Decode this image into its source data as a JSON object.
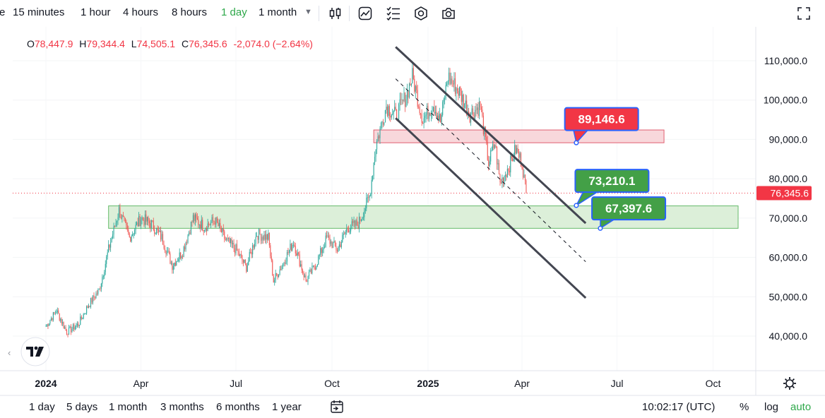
{
  "toolbar": {
    "partial_left": "e",
    "intervals": [
      "15 minutes",
      "1 hour",
      "4 hours",
      "8 hours",
      "1 day",
      "1 month"
    ],
    "active_interval": "1 day",
    "icons": [
      "bar-style-icon",
      "indicators-icon",
      "alert-list-icon",
      "settings-icon",
      "camera-icon",
      "fullscreen-icon"
    ]
  },
  "ohlc": {
    "o_label": "O",
    "o_value": "78,447.9",
    "h_label": "H",
    "h_value": "79,344.4",
    "l_label": "L",
    "l_value": "74,505.1",
    "c_label": "C",
    "c_value": "76,345.6",
    "change": "-2,074.0 (−2.64%)"
  },
  "chart_data": {
    "type": "candlestick",
    "y_axis": {
      "min": 33000,
      "max": 117000,
      "ticks": [
        "110,000.0",
        "100,000.0",
        "90,000.0",
        "80,000.0",
        "70,000.0",
        "60,000.0",
        "50,000.0",
        "40,000.0"
      ]
    },
    "x_axis": {
      "ticks": [
        "2024",
        "Apr",
        "Jul",
        "Oct",
        "2025",
        "Apr",
        "Jul",
        "Oct"
      ],
      "bold": [
        "2024",
        "2025"
      ]
    },
    "last_price": "76,345.6",
    "last_price_value": 76345.6,
    "zones": [
      {
        "kind": "resistance",
        "low": 89146.6,
        "high": 92400,
        "start": "2024-11-10",
        "end": "2025-08-15",
        "color": "#f8d7db"
      },
      {
        "kind": "support",
        "low": 67397.6,
        "high": 73100,
        "start": "2024-03-01",
        "end": "2025-10-25",
        "color": "#dcefd9"
      }
    ],
    "callouts": [
      {
        "text": "89,146.6",
        "color": "#f23645",
        "value": 89146.6,
        "date": "2025-05-23"
      },
      {
        "text": "73,210.1",
        "color": "#43a047",
        "value": 73210.1,
        "date": "2025-05-23"
      },
      {
        "text": "67,397.6",
        "color": "#43a047",
        "value": 67397.6,
        "date": "2025-06-15"
      }
    ],
    "channel": {
      "upper": [
        [
          "2024-12-01",
          113500
        ],
        [
          "2025-06-01",
          68700
        ]
      ],
      "middle": [
        [
          "2024-12-01",
          105400
        ],
        [
          "2025-06-01",
          58900
        ]
      ],
      "lower": [
        [
          "2024-12-01",
          95400
        ],
        [
          "2025-06-01",
          49700
        ]
      ]
    },
    "closes": [
      [
        "2024-01-01",
        42500
      ],
      [
        "2024-01-11",
        46500
      ],
      [
        "2024-01-21",
        41000
      ],
      [
        "2024-02-01",
        43000
      ],
      [
        "2024-02-11",
        48000
      ],
      [
        "2024-02-21",
        51700
      ],
      [
        "2024-03-01",
        62000
      ],
      [
        "2024-03-11",
        72000
      ],
      [
        "2024-03-21",
        65000
      ],
      [
        "2024-04-01",
        70000
      ],
      [
        "2024-04-11",
        68500
      ],
      [
        "2024-04-21",
        65000
      ],
      [
        "2024-05-01",
        58000
      ],
      [
        "2024-05-11",
        61500
      ],
      [
        "2024-05-21",
        70000
      ],
      [
        "2024-06-01",
        67800
      ],
      [
        "2024-06-11",
        69500
      ],
      [
        "2024-06-21",
        64500
      ],
      [
        "2024-07-01",
        62000
      ],
      [
        "2024-07-11",
        57500
      ],
      [
        "2024-07-21",
        66000
      ],
      [
        "2024-08-01",
        65000
      ],
      [
        "2024-08-06",
        54000
      ],
      [
        "2024-08-15",
        58500
      ],
      [
        "2024-08-25",
        64000
      ],
      [
        "2024-09-06",
        54000
      ],
      [
        "2024-09-16",
        58500
      ],
      [
        "2024-09-26",
        65000
      ],
      [
        "2024-10-06",
        62000
      ],
      [
        "2024-10-16",
        67500
      ],
      [
        "2024-10-26",
        68500
      ],
      [
        "2024-11-06",
        75500
      ],
      [
        "2024-11-12",
        88500
      ],
      [
        "2024-11-22",
        98500
      ],
      [
        "2024-12-01",
        96000
      ],
      [
        "2024-12-11",
        101000
      ],
      [
        "2024-12-17",
        106000
      ],
      [
        "2024-12-27",
        95000
      ],
      [
        "2025-01-06",
        99000
      ],
      [
        "2025-01-13",
        94500
      ],
      [
        "2025-01-20",
        106000
      ],
      [
        "2025-01-31",
        102000
      ],
      [
        "2025-02-10",
        96500
      ],
      [
        "2025-02-20",
        98500
      ],
      [
        "2025-02-28",
        84000
      ],
      [
        "2025-03-06",
        89000
      ],
      [
        "2025-03-11",
        78800
      ],
      [
        "2025-03-21",
        84000
      ],
      [
        "2025-03-26",
        87500
      ],
      [
        "2025-04-01",
        84000
      ],
      [
        "2025-04-05",
        76345.6
      ]
    ]
  },
  "bottom": {
    "ranges": [
      "1 day",
      "5 days",
      "1 month",
      "3 months",
      "6 months",
      "1 year"
    ],
    "time": "10:02:17 (UTC)",
    "percent": "%",
    "log": "log",
    "auto": "auto"
  }
}
